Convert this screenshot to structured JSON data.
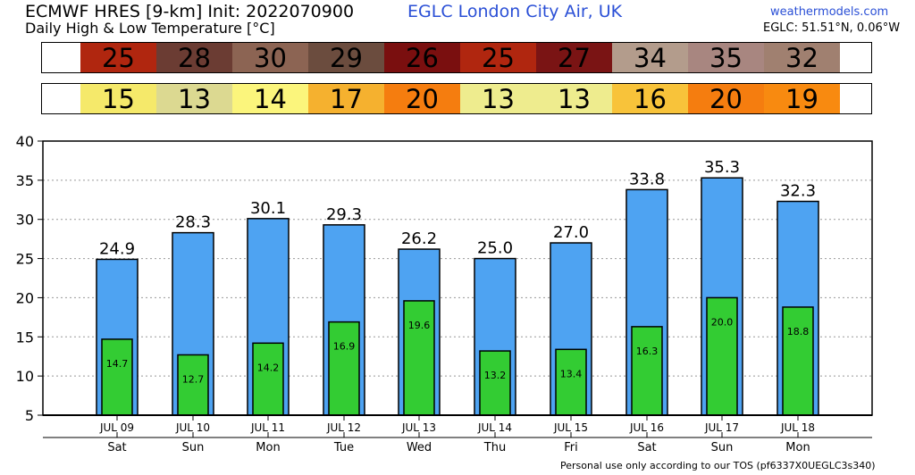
{
  "header": {
    "model": "ECMWF HRES [9-km] Init: 2022070900",
    "location": "EGLC London City Air,   UK",
    "subtitle": "Daily High & Low Temperature [°C]",
    "site": "weathermodels.com",
    "coords": "EGLC: 51.51°N, 0.06°W"
  },
  "strips": {
    "high": [
      {
        "value": "25",
        "color": "#b0260f"
      },
      {
        "value": "28",
        "color": "#6b3c33"
      },
      {
        "value": "30",
        "color": "#8c6453"
      },
      {
        "value": "29",
        "color": "#6b4c3e"
      },
      {
        "value": "26",
        "color": "#7a0f0f"
      },
      {
        "value": "25",
        "color": "#b0260f"
      },
      {
        "value": "27",
        "color": "#7a1414"
      },
      {
        "value": "34",
        "color": "#b39c8c"
      },
      {
        "value": "35",
        "color": "#a88680"
      },
      {
        "value": "32",
        "color": "#a08070"
      }
    ],
    "low": [
      {
        "value": "15",
        "color": "#f5e96a"
      },
      {
        "value": "13",
        "color": "#dcd991"
      },
      {
        "value": "14",
        "color": "#fbf57c"
      },
      {
        "value": "17",
        "color": "#f5b12f"
      },
      {
        "value": "20",
        "color": "#f57d0f"
      },
      {
        "value": "13",
        "color": "#eeec8e"
      },
      {
        "value": "13",
        "color": "#eeec8e"
      },
      {
        "value": "16",
        "color": "#f8c33a"
      },
      {
        "value": "20",
        "color": "#f57d0f"
      },
      {
        "value": "19",
        "color": "#f88a10"
      }
    ]
  },
  "footer": "Personal use only according to our TOS (pf6337X0UEGLC3s340)",
  "chart_data": {
    "type": "bar",
    "categories": [
      "JUL 09",
      "JUL 10",
      "JUL 11",
      "JUL 12",
      "JUL 13",
      "JUL 14",
      "JUL 15",
      "JUL 16",
      "JUL 17",
      "JUL 18"
    ],
    "weekdays": [
      "Sat",
      "Sun",
      "Mon",
      "Tue",
      "Wed",
      "Thu",
      "Fri",
      "Sat",
      "Sun",
      "Mon"
    ],
    "series": [
      {
        "values": [
          24.9,
          28.3,
          30.1,
          29.3,
          26.2,
          25.0,
          27.0,
          33.8,
          35.3,
          32.3
        ],
        "labels": [
          "24.9",
          "28.3",
          "30.1",
          "29.3",
          "26.2",
          "25.0",
          "27.0",
          "33.8",
          "35.3",
          "32.3"
        ],
        "color": "#4ea3f2"
      },
      {
        "values": [
          14.7,
          12.7,
          14.2,
          16.9,
          19.6,
          13.2,
          13.4,
          16.3,
          20.0,
          18.8
        ],
        "labels": [
          "14.7",
          "12.7",
          "14.2",
          "16.9",
          "19.6",
          "13.2",
          "13.4",
          "16.3",
          "20.0",
          "18.8"
        ],
        "color": "#33cc33"
      }
    ],
    "ylim": [
      5,
      40
    ],
    "yticks": [
      "5",
      "10",
      "15",
      "20",
      "25",
      "30",
      "35",
      "40"
    ],
    "grid": true
  }
}
